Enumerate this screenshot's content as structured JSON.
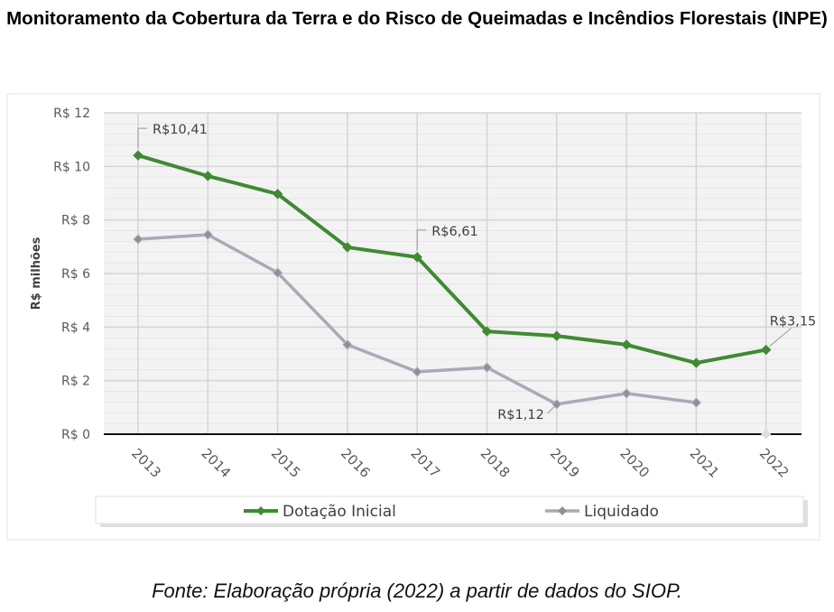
{
  "title": "Monitoramento da Cobertura da Terra e do Risco de Queimadas e Incêndios Florestais (INPE)",
  "source": "Fonte: Elaboração própria (2022) a partir de dados do SIOP.",
  "chart_data": {
    "type": "line",
    "title": "",
    "xlabel": "",
    "ylabel": "R$ milhões",
    "ylim": [
      0,
      12
    ],
    "yticks": [
      "R$ 0",
      "R$ 2",
      "R$ 4",
      "R$ 6",
      "R$ 8",
      "R$ 10",
      "R$ 12"
    ],
    "grid": true,
    "legend": "bottom",
    "categories": [
      "2013",
      "2014",
      "2015",
      "2016",
      "2017",
      "2018",
      "2019",
      "2020",
      "2021",
      "2022"
    ],
    "series": [
      {
        "name": "Dotação Inicial",
        "color": "#3f8a33",
        "values": [
          10.41,
          9.64,
          8.97,
          6.98,
          6.61,
          3.84,
          3.67,
          3.34,
          2.66,
          3.15
        ]
      },
      {
        "name": "Liquidado",
        "color": "#a9a9b8",
        "values": [
          7.28,
          7.45,
          6.03,
          3.34,
          2.33,
          2.49,
          1.12,
          1.52,
          1.18,
          0
        ]
      }
    ],
    "annotations": [
      {
        "series": 0,
        "index": 0,
        "text": "R$10,41"
      },
      {
        "series": 0,
        "index": 4,
        "text": "R$6,61"
      },
      {
        "series": 0,
        "index": 9,
        "text": "R$3,15"
      },
      {
        "series": 1,
        "index": 6,
        "text": "R$1,12"
      }
    ]
  }
}
